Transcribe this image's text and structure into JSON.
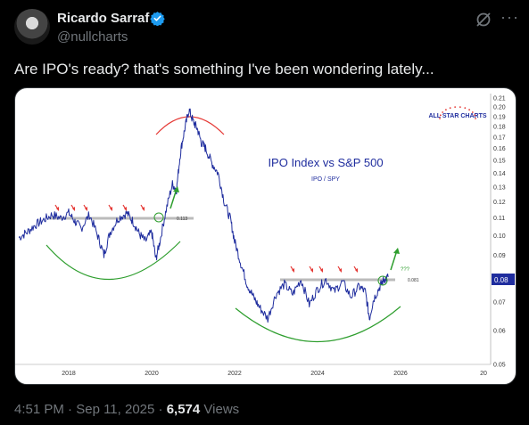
{
  "tweet": {
    "display_name": "Ricardo Sarraf",
    "handle": "@nullcharts",
    "text": "Are IPO's ready? that's something I've been wondering lately...",
    "time": "4:51 PM",
    "date": "Sep 11, 2025",
    "views_count": "6,574",
    "views_label": "Views"
  },
  "icons": {
    "verified": "verified-badge-icon",
    "grok": "grok-icon",
    "more": "more-icon"
  },
  "colors": {
    "verified": "#1d9bf0",
    "line": "#1f2d9e",
    "arrows": "#e53935",
    "up_arrow": "#2e9e2e",
    "arc_top": "#e53935",
    "arc_bottom": "#2e9e2e"
  },
  "chart_data": {
    "type": "line",
    "title": "IPO Index vs S&P 500",
    "subtitle": "IPO / SPY",
    "watermark": "ALL STAR CHARTS",
    "x_ticks": [
      "2018",
      "2020",
      "2022",
      "2024",
      "2026",
      "20"
    ],
    "y_ticks": [
      "0.21",
      "0.20",
      "0.19",
      "0.18",
      "0.17",
      "0.16",
      "0.15",
      "0.14",
      "0.13",
      "0.12",
      "0.11",
      "0.10",
      "0.09",
      "0.08",
      "0.07",
      "0.06",
      "0.05"
    ],
    "y_scale": "log",
    "ylim": [
      0.05,
      0.215
    ],
    "last_value_label": "0.08",
    "resistance_1_label": "0.113",
    "resistance_2_label": "0.081",
    "annotation_question": "???",
    "series": [
      {
        "values": [
          [
            2016.8,
            0.099
          ],
          [
            2017.0,
            0.102
          ],
          [
            2017.2,
            0.106
          ],
          [
            2017.4,
            0.109
          ],
          [
            2017.6,
            0.112
          ],
          [
            2017.8,
            0.11
          ],
          [
            2018.0,
            0.113
          ],
          [
            2018.15,
            0.108
          ],
          [
            2018.3,
            0.104
          ],
          [
            2018.5,
            0.112
          ],
          [
            2018.7,
            0.1
          ],
          [
            2018.85,
            0.09
          ],
          [
            2019.0,
            0.102
          ],
          [
            2019.2,
            0.11
          ],
          [
            2019.4,
            0.113
          ],
          [
            2019.55,
            0.108
          ],
          [
            2019.7,
            0.101
          ],
          [
            2019.85,
            0.097
          ],
          [
            2020.0,
            0.102
          ],
          [
            2020.1,
            0.088
          ],
          [
            2020.2,
            0.097
          ],
          [
            2020.35,
            0.115
          ],
          [
            2020.5,
            0.132
          ],
          [
            2020.6,
            0.128
          ],
          [
            2020.7,
            0.158
          ],
          [
            2020.8,
            0.178
          ],
          [
            2020.9,
            0.197
          ],
          [
            2021.0,
            0.185
          ],
          [
            2021.1,
            0.178
          ],
          [
            2021.2,
            0.165
          ],
          [
            2021.3,
            0.16
          ],
          [
            2021.45,
            0.148
          ],
          [
            2021.6,
            0.14
          ],
          [
            2021.75,
            0.12
          ],
          [
            2021.9,
            0.109
          ],
          [
            2022.0,
            0.097
          ],
          [
            2022.15,
            0.086
          ],
          [
            2022.3,
            0.077
          ],
          [
            2022.45,
            0.072
          ],
          [
            2022.6,
            0.068
          ],
          [
            2022.8,
            0.064
          ],
          [
            2023.0,
            0.073
          ],
          [
            2023.2,
            0.077
          ],
          [
            2023.4,
            0.073
          ],
          [
            2023.6,
            0.079
          ],
          [
            2023.8,
            0.069
          ],
          [
            2024.0,
            0.075
          ],
          [
            2024.2,
            0.079
          ],
          [
            2024.4,
            0.074
          ],
          [
            2024.6,
            0.078
          ],
          [
            2024.8,
            0.072
          ],
          [
            2025.0,
            0.076
          ],
          [
            2025.15,
            0.074
          ],
          [
            2025.25,
            0.064
          ],
          [
            2025.35,
            0.071
          ],
          [
            2025.5,
            0.076
          ],
          [
            2025.6,
            0.079
          ],
          [
            2025.7,
            0.08
          ]
        ]
      }
    ]
  }
}
